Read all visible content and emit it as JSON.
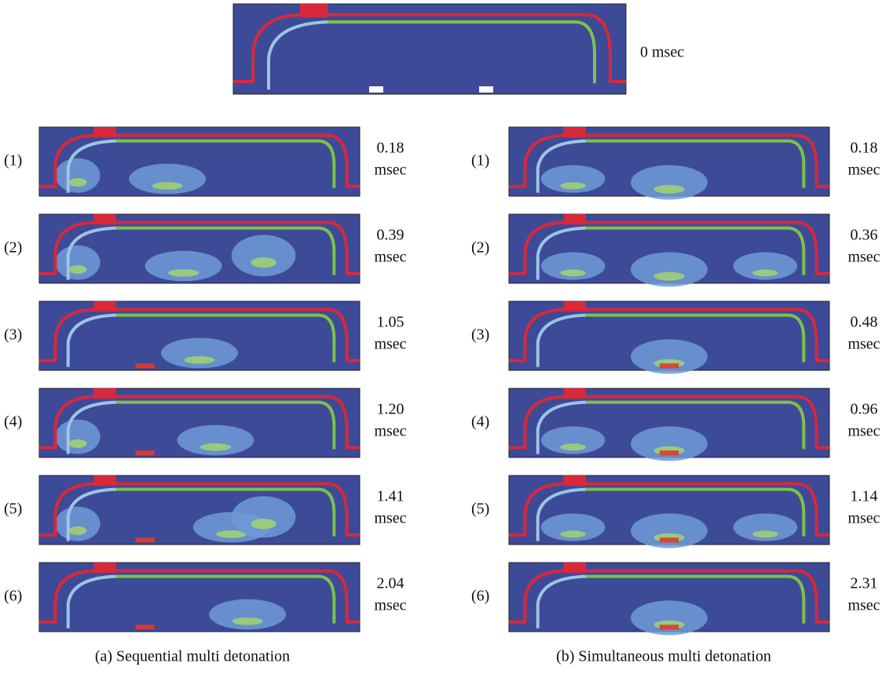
{
  "top": {
    "time": "0 msec"
  },
  "columns": [
    {
      "caption": "(a) Sequential multi detonation",
      "panels": [
        {
          "index": "(1)",
          "time": "0.18",
          "unit": "msec"
        },
        {
          "index": "(2)",
          "time": "0.39",
          "unit": "msec"
        },
        {
          "index": "(3)",
          "time": "1.05",
          "unit": "msec"
        },
        {
          "index": "(4)",
          "time": "1.20",
          "unit": "msec"
        },
        {
          "index": "(5)",
          "time": "1.41",
          "unit": "msec"
        },
        {
          "index": "(6)",
          "time": "2.04",
          "unit": "msec"
        }
      ]
    },
    {
      "caption": "(b) Simultaneous multi detonation",
      "panels": [
        {
          "index": "(1)",
          "time": "0.18",
          "unit": "msec"
        },
        {
          "index": "(2)",
          "time": "0.36",
          "unit": "msec"
        },
        {
          "index": "(3)",
          "time": "0.48",
          "unit": "msec"
        },
        {
          "index": "(4)",
          "time": "0.96",
          "unit": "msec"
        },
        {
          "index": "(5)",
          "time": "1.14",
          "unit": "msec"
        },
        {
          "index": "(6)",
          "time": "2.31",
          "unit": "msec"
        }
      ]
    }
  ]
}
